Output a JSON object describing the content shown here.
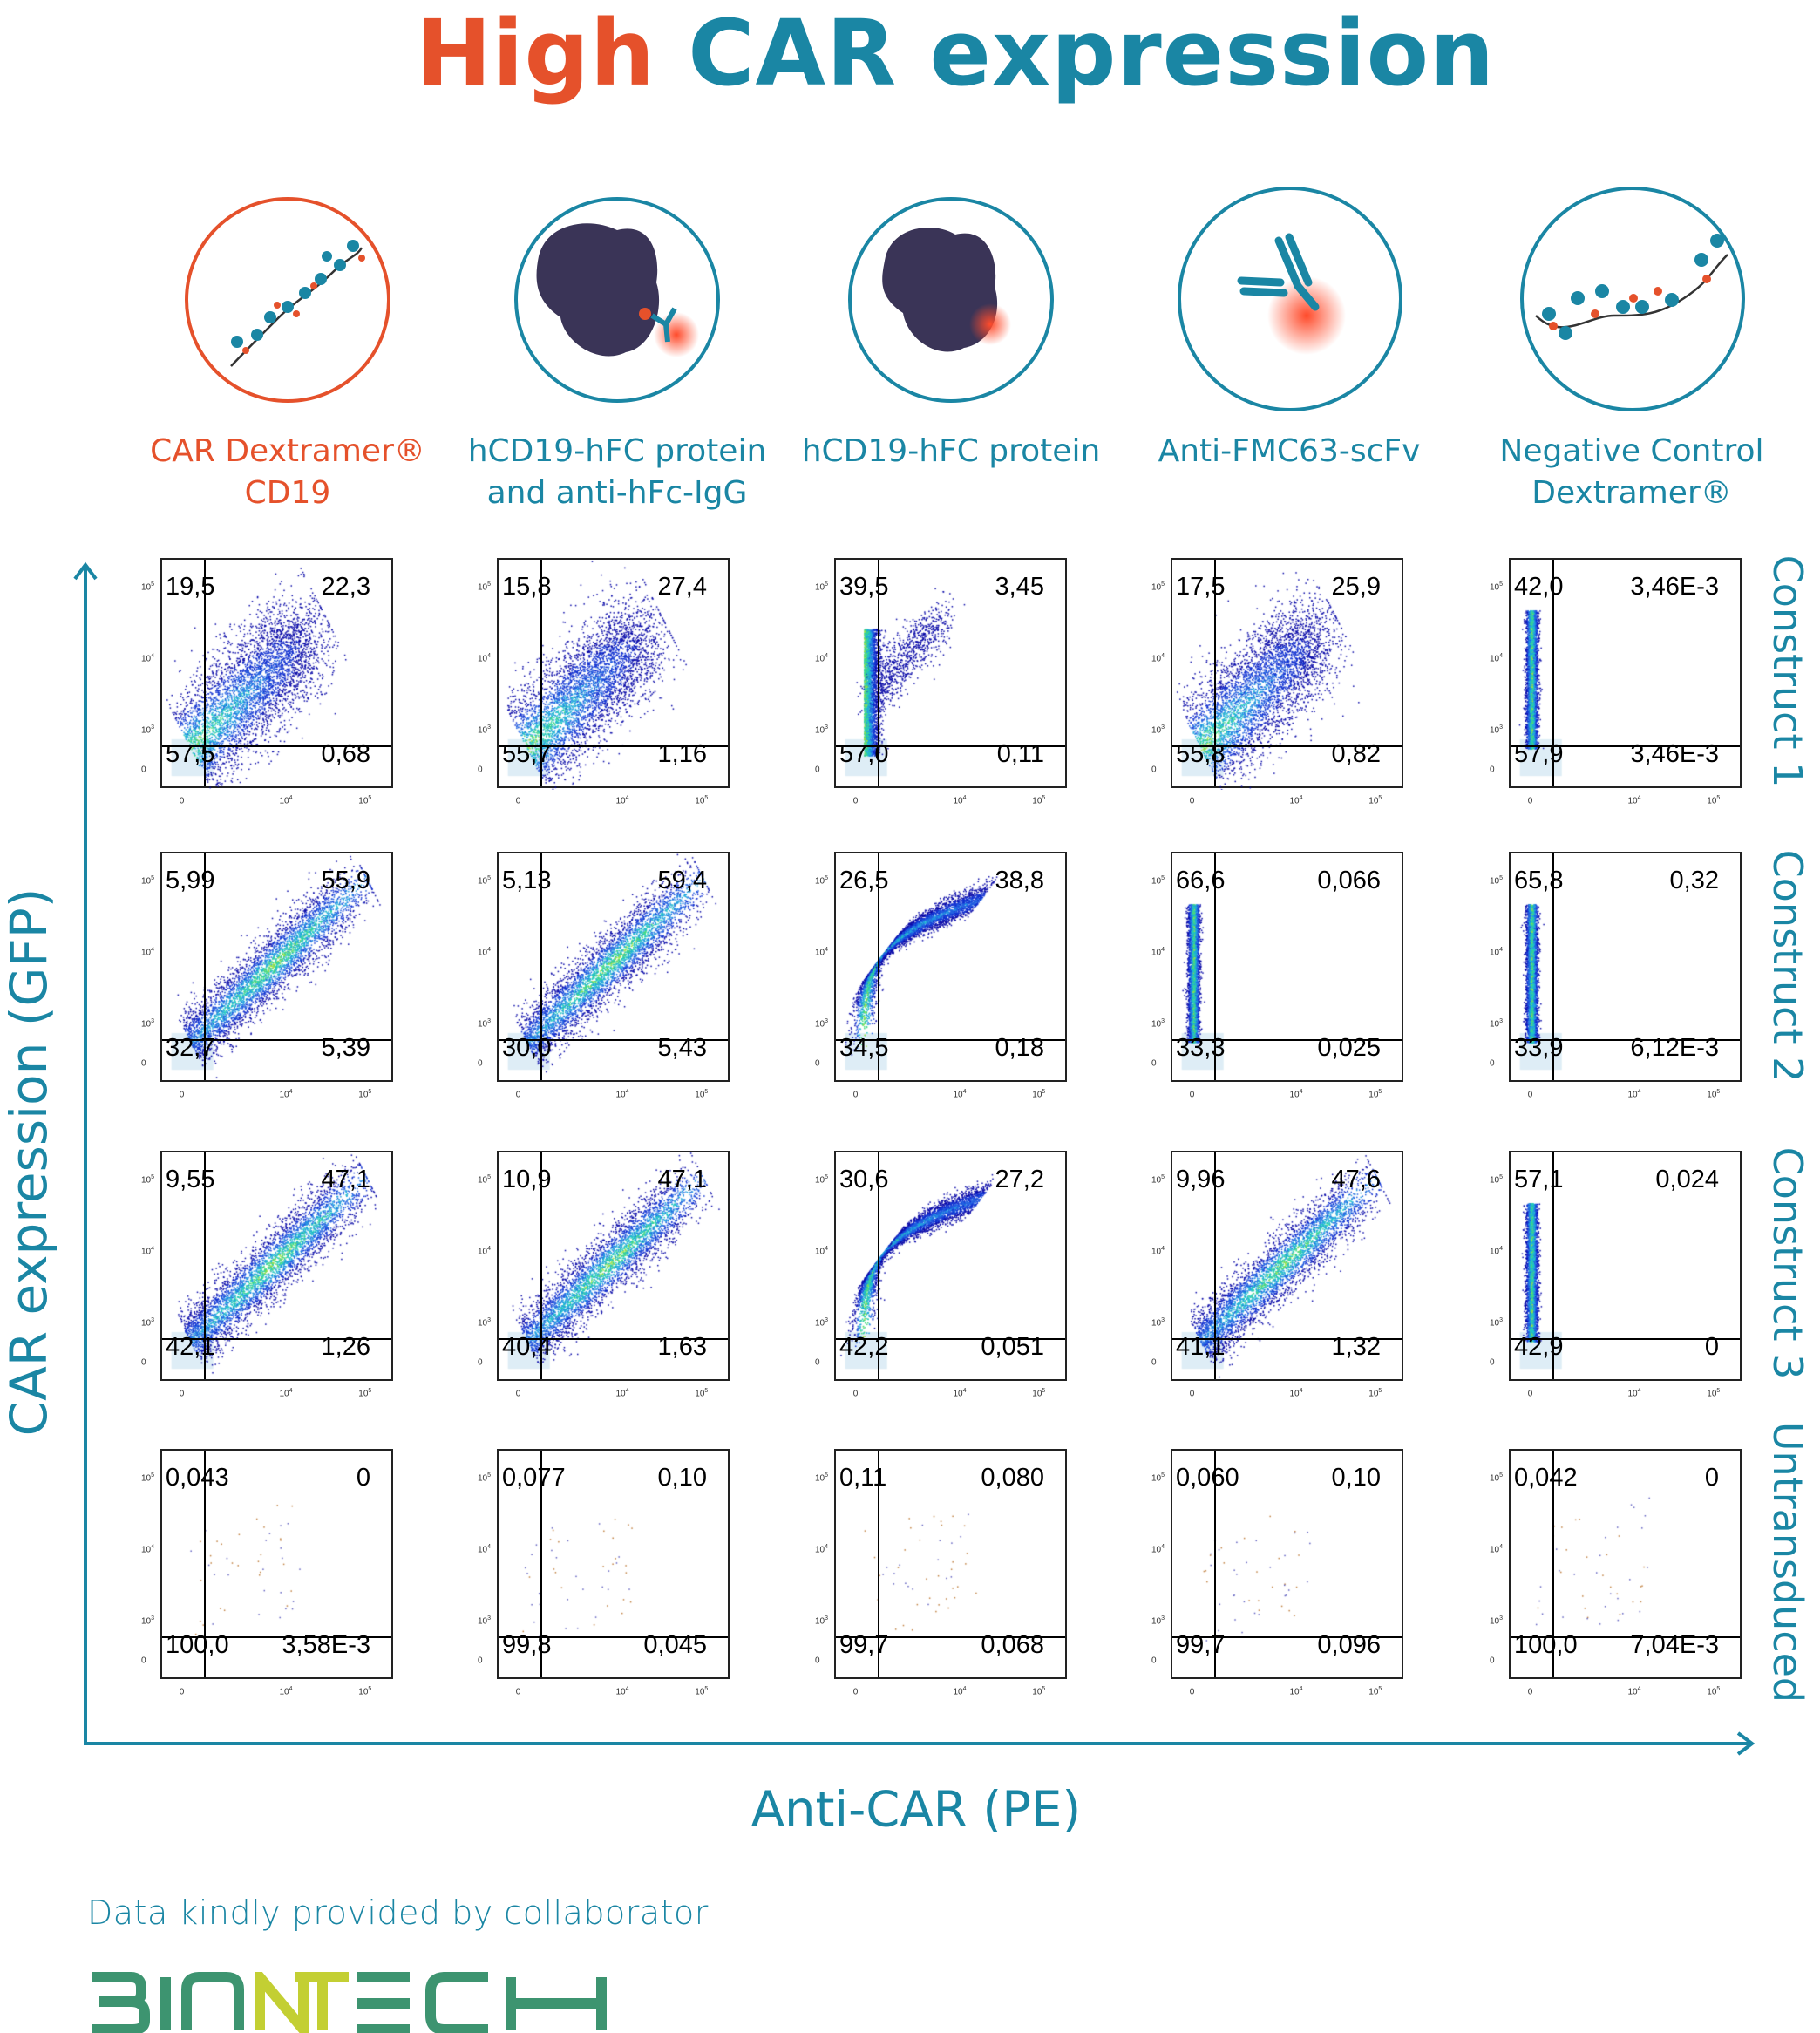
{
  "title": {
    "part1": "High",
    "part2": "CAR expression"
  },
  "colors": {
    "orange": "#e5512b",
    "teal": "#1a86a4",
    "logo_green": "#3d9470",
    "logo_lime": "#c3cf33"
  },
  "columns": [
    {
      "line1": "CAR Dextramer®",
      "line2": "CD19",
      "color": "#e5512b",
      "icon": "dextramer-cd19-icon"
    },
    {
      "line1": "hCD19-hFC protein",
      "line2": "and anti-hFc-IgG",
      "color": "#1a86a4",
      "icon": "protein-with-antibody-icon"
    },
    {
      "line1": "hCD19-hFC protein",
      "line2": "",
      "color": "#1a86a4",
      "icon": "protein-icon"
    },
    {
      "line1": "Anti-FMC63-scFv",
      "line2": "",
      "color": "#1a86a4",
      "icon": "antibody-icon"
    },
    {
      "line1": "Negative Control",
      "line2": "Dextramer®",
      "color": "#1a86a4",
      "icon": "negative-dextramer-icon"
    }
  ],
  "rows": [
    "Construct 1",
    "Construct 2",
    "Construct 3",
    "Untransduced"
  ],
  "axes": {
    "y_label": "CAR expression (GFP)",
    "x_label": "Anti-CAR (PE)"
  },
  "ticks": {
    "y": [
      {
        "base": "10",
        "exp": "5"
      },
      {
        "base": "10",
        "exp": "4"
      },
      {
        "base": "10",
        "exp": "3"
      },
      {
        "base": "0",
        "exp": ""
      }
    ],
    "x": [
      {
        "base": "0",
        "exp": ""
      },
      {
        "base": "10",
        "exp": "4"
      },
      {
        "base": "10",
        "exp": "5"
      }
    ]
  },
  "chart_data": {
    "type": "scatter",
    "title": "High CAR expression",
    "xlabel": "Anti-CAR (PE)",
    "ylabel": "CAR expression (GFP)",
    "scale": "biexponential",
    "quadrant_order": [
      "upper_left",
      "upper_right",
      "lower_left",
      "lower_right"
    ],
    "panels": [
      [
        [
          "19,5",
          "22,3",
          "57,5",
          "0,68"
        ],
        [
          "15,8",
          "27,4",
          "55,7",
          "1,16"
        ],
        [
          "39,5",
          "3,45",
          "57,0",
          "0,11"
        ],
        [
          "17,5",
          "25,9",
          "55,8",
          "0,82"
        ],
        [
          "42,0",
          "3,46E-3",
          "57,9",
          "3,46E-3"
        ]
      ],
      [
        [
          "5,99",
          "55,9",
          "32,7",
          "5,39"
        ],
        [
          "5,13",
          "59,4",
          "30,0",
          "5,43"
        ],
        [
          "26,5",
          "38,8",
          "34,5",
          "0,18"
        ],
        [
          "66,6",
          "0,066",
          "33,3",
          "0,025"
        ],
        [
          "65,8",
          "0,32",
          "33,9",
          "6,12E-3"
        ]
      ],
      [
        [
          "9,55",
          "47,1",
          "42,1",
          "1,26"
        ],
        [
          "10,9",
          "47,1",
          "40,4",
          "1,63"
        ],
        [
          "30,6",
          "27,2",
          "42,2",
          "0,051"
        ],
        [
          "9,96",
          "47,6",
          "41,1",
          "1,32"
        ],
        [
          "57,1",
          "0,024",
          "42,9",
          "0"
        ]
      ],
      [
        [
          "0,043",
          "0",
          "100,0",
          "3,58E-3"
        ],
        [
          "0,077",
          "0,10",
          "99,8",
          "0,045"
        ],
        [
          "0,11",
          "0,080",
          "99,7",
          "0,068"
        ],
        [
          "0,060",
          "0,10",
          "99,7",
          "0,096"
        ],
        [
          "0,042",
          "0",
          "100,0",
          "7,04E-3"
        ]
      ]
    ]
  },
  "footer": {
    "credit": "Data kindly provided by collaborator",
    "logo": "BIONTECH"
  }
}
